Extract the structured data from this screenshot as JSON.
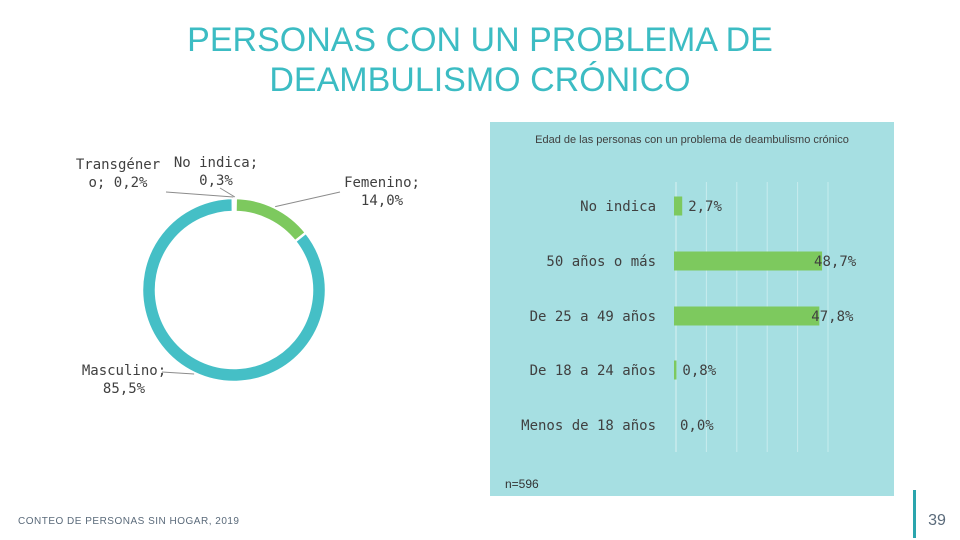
{
  "slide": {
    "title_line1": "PERSONAS CON UN PROBLEMA DE",
    "title_line2": "DEAMBULISMO CRÓNICO",
    "footer_text": "CONTEO DE PERSONAS SIN HOGAR, 2019",
    "page_number": "39",
    "accent_color": "#3cbcc3"
  },
  "chart_data": [
    {
      "type": "pie",
      "variant": "donut",
      "title": "",
      "slices": [
        {
          "label": "Femenino",
          "value": 14.0,
          "display": "Femenino;\n14,0%",
          "color": "#7dc95e"
        },
        {
          "label": "Masculino",
          "value": 85.5,
          "display": "Masculino;\n85,5%",
          "color": "#45bfc6"
        },
        {
          "label": "Transgénero",
          "value": 0.2,
          "display": "Transgéner\no; 0,2%",
          "color": "#3e96c8"
        },
        {
          "label": "No indica",
          "value": 0.3,
          "display": "No indica;\n0,3%",
          "color": "#a0a0a0"
        }
      ]
    },
    {
      "type": "bar",
      "orientation": "horizontal",
      "title": "Edad  de las personas con un problema de deambulismo crónico",
      "categories": [
        "No indica",
        "50 años o más",
        "De 25 a 49 años",
        "De 18 a 24 años",
        "Menos de 18 años"
      ],
      "values": [
        2.7,
        48.7,
        47.8,
        0.8,
        0.0
      ],
      "value_labels": [
        "2,7%",
        "48,7%",
        "47,8%",
        "0,8%",
        "0,0%"
      ],
      "xlim": [
        0,
        50
      ],
      "bar_color": "#7dc95e",
      "background": "#a6dfe2",
      "note": "n=596"
    }
  ]
}
